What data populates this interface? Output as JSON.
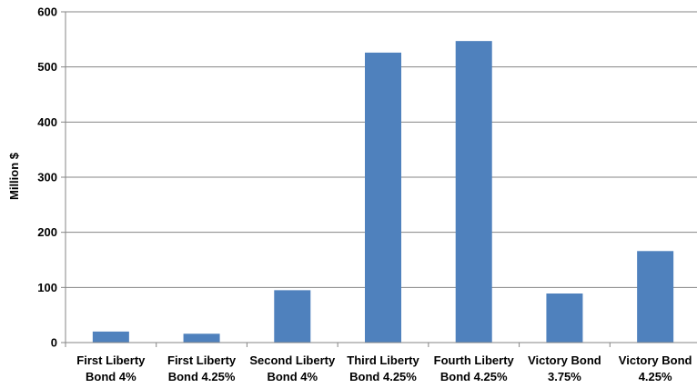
{
  "chart_data": {
    "type": "bar",
    "title": "",
    "xlabel": "",
    "ylabel": "Million $",
    "ylim": [
      0,
      600
    ],
    "yticks": [
      0,
      100,
      200,
      300,
      400,
      500,
      600
    ],
    "grid": true,
    "legend": "none",
    "bar_color": "#4f81bd",
    "categories": [
      [
        "First Liberty",
        "Bond 4%"
      ],
      [
        "First Liberty",
        "Bond 4.25%"
      ],
      [
        "Second Liberty",
        "Bond 4%"
      ],
      [
        "Third Liberty",
        "Bond 4.25%"
      ],
      [
        "Fourth Liberty",
        "Bond 4.25%"
      ],
      [
        "Victory Bond",
        "3.75%"
      ],
      [
        "Victory Bond",
        "4.25%"
      ]
    ],
    "values": [
      20,
      16,
      95,
      526,
      547,
      89,
      166
    ]
  }
}
